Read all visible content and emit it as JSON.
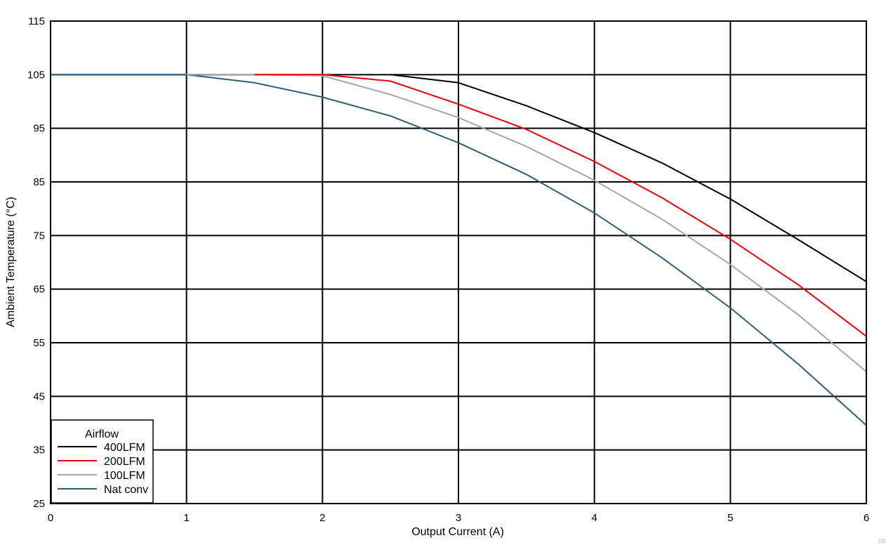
{
  "chart_data": {
    "type": "line",
    "title": "",
    "xlabel": "Output Current (A)",
    "ylabel": "Ambient Temperature (°C)",
    "xlim": [
      0,
      6
    ],
    "ylim": [
      25,
      115
    ],
    "x_ticks": [
      0,
      1,
      2,
      3,
      4,
      5,
      6
    ],
    "y_ticks": [
      25,
      35,
      45,
      55,
      65,
      75,
      85,
      95,
      105,
      115
    ],
    "x_tick_labels": [
      "0",
      "1",
      "2",
      "3",
      "4",
      "5",
      "6"
    ],
    "y_tick_labels": [
      "25",
      "35",
      "45",
      "55",
      "65",
      "75",
      "85",
      "95",
      "105",
      "115"
    ],
    "grid": true,
    "legend": {
      "title": "Airflow",
      "placement": "bottom-left"
    },
    "corner_note": "D0",
    "series": [
      {
        "name": "400LFM",
        "color": "#000000",
        "x": [
          2.5,
          3.0,
          3.5,
          4.0,
          4.5,
          5.0,
          5.5,
          6.0
        ],
        "y": [
          105.0,
          103.5,
          99.2,
          94.2,
          88.5,
          81.8,
          74.2,
          66.4
        ]
      },
      {
        "name": "200LFM",
        "color": "#e8000b",
        "x": [
          1.5,
          2.0,
          2.5,
          3.0,
          3.5,
          4.0,
          4.5,
          5.0,
          5.5,
          6.0
        ],
        "y": [
          105.0,
          105.0,
          103.8,
          99.5,
          94.8,
          88.8,
          82.0,
          74.3,
          65.8,
          56.2
        ]
      },
      {
        "name": "100LFM",
        "color": "#a6a6a6",
        "x": [
          1.0,
          1.5,
          2.0,
          2.5,
          3.0,
          3.5,
          4.0,
          4.5,
          5.0,
          5.5,
          6.0
        ],
        "y": [
          105.0,
          105.0,
          104.8,
          101.3,
          97.0,
          91.6,
          85.3,
          78.0,
          69.6,
          60.2,
          49.6
        ]
      },
      {
        "name": "Nat conv",
        "color": "#2e5f77",
        "x": [
          0.0,
          0.5,
          1.0,
          1.5,
          2.0,
          2.5,
          3.0,
          3.5,
          4.0,
          4.5,
          5.0,
          5.5,
          6.0
        ],
        "y": [
          105.0,
          105.0,
          105.0,
          103.5,
          100.8,
          97.3,
          92.3,
          86.4,
          79.2,
          70.8,
          61.5,
          51.0,
          39.6
        ]
      }
    ]
  }
}
